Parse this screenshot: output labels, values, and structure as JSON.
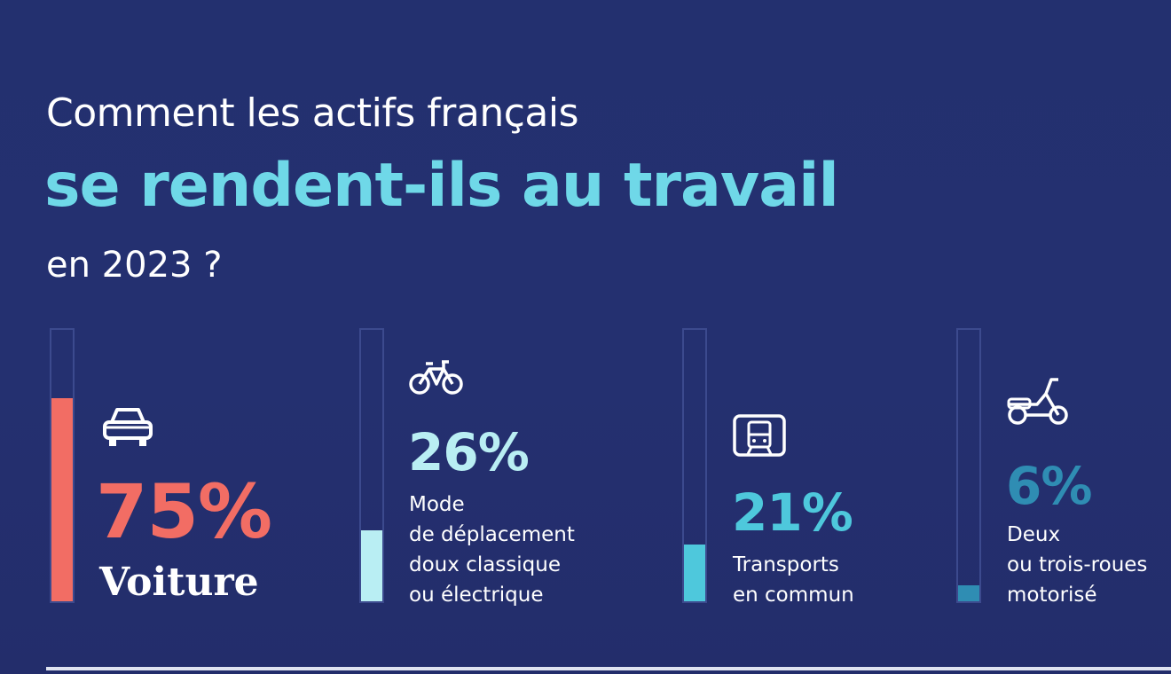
{
  "title": {
    "line1": "Comment les actifs français",
    "line2": "se rendent-ils au travail",
    "line3": "en 2023 ?"
  },
  "colors": {
    "background": "#243070",
    "accent": "#6fd8e8",
    "car": "#f26d64",
    "light": "#b9eef3",
    "cyan": "#4ec8dc",
    "teal": "#2f8db3",
    "empty": "#3c4a8e"
  },
  "chart_data": {
    "type": "bar",
    "categories": [
      "Voiture",
      "Mode de déplacement doux classique ou électrique",
      "Transports en commun",
      "Deux ou trois-roues motorisé"
    ],
    "values": [
      75,
      26,
      21,
      6
    ],
    "unit": "%",
    "ylim": [
      0,
      100
    ],
    "items": [
      {
        "value_label": "75%",
        "label_lines": [
          "Voiture"
        ],
        "icon": "car-icon",
        "color": "#f26d64"
      },
      {
        "value_label": "26%",
        "label_lines": [
          "Mode",
          "de déplacement",
          "doux classique",
          "ou électrique"
        ],
        "icon": "bicycle-icon",
        "color": "#b9eef3"
      },
      {
        "value_label": "21%",
        "label_lines": [
          "Transports",
          "en commun"
        ],
        "icon": "train-icon",
        "color": "#4ec8dc"
      },
      {
        "value_label": "6%",
        "label_lines": [
          "Deux",
          "ou trois-roues",
          "motorisé"
        ],
        "icon": "scooter-icon",
        "color": "#2f8db3"
      }
    ]
  }
}
